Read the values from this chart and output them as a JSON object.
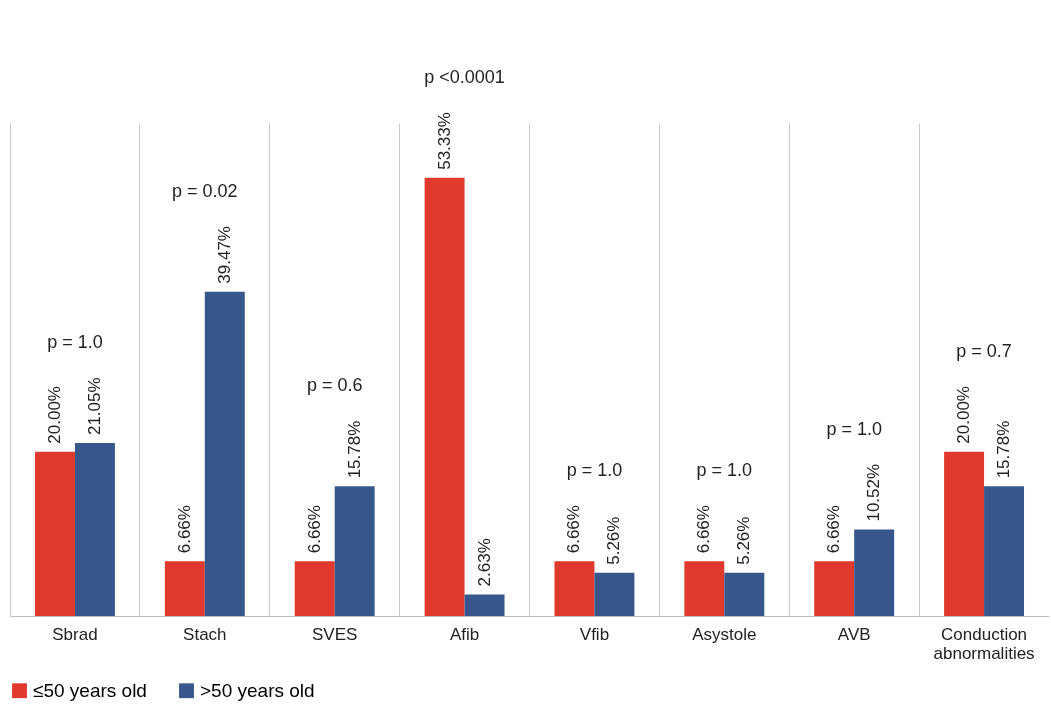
{
  "chart_data": {
    "type": "bar",
    "categories": [
      "Sbrad",
      "Stach",
      "SVES",
      "Afib",
      "Vfib",
      "Asystole",
      "AVB",
      "Conduction abnormalities"
    ],
    "series": [
      {
        "name": "≤50 years old",
        "color": "#e03a2e",
        "values": [
          20.0,
          6.66,
          6.66,
          53.33,
          6.66,
          6.66,
          6.66,
          20.0
        ],
        "value_labels": [
          "20.00%",
          "6.66%",
          "6.66%",
          "53.33%",
          "6.66%",
          "6.66%",
          "6.66%",
          "20.00%"
        ]
      },
      {
        "name": ">50 years old",
        "color": "#36568c",
        "values": [
          21.05,
          39.47,
          15.78,
          2.63,
          5.26,
          5.26,
          10.52,
          15.78
        ],
        "value_labels": [
          "21.05%",
          "39.47%",
          "15.78%",
          "2.63%",
          "5.26%",
          "5.26%",
          "10.52%",
          "15.78%"
        ]
      }
    ],
    "ylim": [
      0,
      60
    ],
    "annotations": [
      "p = 1.0",
      "p = 0.02",
      "p = 0.6",
      "p <0.0001",
      "p = 1.0",
      "p = 1.0",
      "p = 1.0",
      "p = 0.7"
    ],
    "grid": "x",
    "legend": "bottom"
  }
}
